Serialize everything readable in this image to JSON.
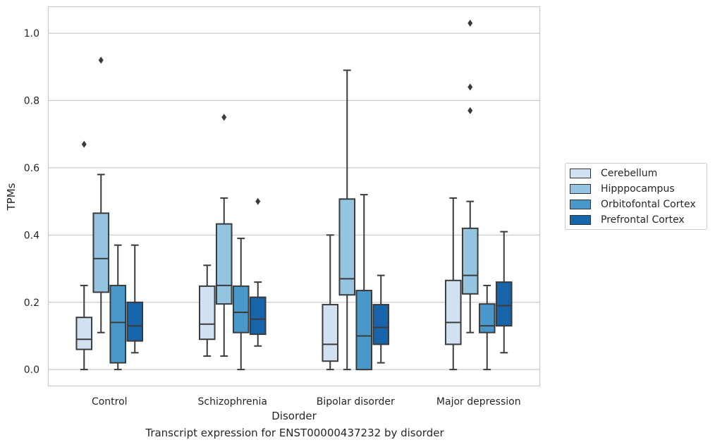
{
  "chart_data": {
    "type": "boxplot",
    "title": "",
    "caption": "Transcript expression for ENST00000437232 by disorder",
    "xlabel": "Disorder",
    "ylabel": "TPMs",
    "ylim": [
      -0.05,
      1.08
    ],
    "yticks": [
      "0.0",
      "0.2",
      "0.4",
      "0.6",
      "0.8",
      "1.0"
    ],
    "categories": [
      "Control",
      "Schizophrenia",
      "Bipolar disorder",
      "Major depression"
    ],
    "grid": "horizontal",
    "legend_position": "right",
    "series": [
      {
        "name": "Cerebellum",
        "color": "#d0e1f2",
        "boxes": [
          {
            "min": 0.0,
            "q1": 0.06,
            "median": 0.09,
            "q3": 0.155,
            "max": 0.25,
            "outliers": [
              0.67
            ]
          },
          {
            "min": 0.04,
            "q1": 0.09,
            "median": 0.135,
            "q3": 0.248,
            "max": 0.31,
            "outliers": []
          },
          {
            "min": 0.0,
            "q1": 0.025,
            "median": 0.075,
            "q3": 0.193,
            "max": 0.4,
            "outliers": []
          },
          {
            "min": 0.0,
            "q1": 0.075,
            "median": 0.14,
            "q3": 0.265,
            "max": 0.51,
            "outliers": []
          }
        ]
      },
      {
        "name": "Hipppocampus",
        "color": "#94c4df",
        "boxes": [
          {
            "min": 0.11,
            "q1": 0.23,
            "median": 0.33,
            "q3": 0.465,
            "max": 0.58,
            "outliers": [
              0.92
            ]
          },
          {
            "min": 0.04,
            "q1": 0.195,
            "median": 0.25,
            "q3": 0.433,
            "max": 0.51,
            "outliers": [
              0.75
            ]
          },
          {
            "min": 0.0,
            "q1": 0.222,
            "median": 0.27,
            "q3": 0.507,
            "max": 0.89,
            "outliers": []
          },
          {
            "min": 0.11,
            "q1": 0.225,
            "median": 0.28,
            "q3": 0.42,
            "max": 0.5,
            "outliers": [
              0.77,
              0.84,
              1.03
            ]
          }
        ]
      },
      {
        "name": "Orbitofontal Cortex",
        "color": "#4a98c9",
        "boxes": [
          {
            "min": 0.0,
            "q1": 0.02,
            "median": 0.14,
            "q3": 0.25,
            "max": 0.37,
            "outliers": []
          },
          {
            "min": 0.0,
            "q1": 0.11,
            "median": 0.17,
            "q3": 0.248,
            "max": 0.39,
            "outliers": []
          },
          {
            "min": 0.0,
            "q1": 0.0,
            "median": 0.1,
            "q3": 0.235,
            "max": 0.52,
            "outliers": []
          },
          {
            "min": 0.0,
            "q1": 0.11,
            "median": 0.13,
            "q3": 0.195,
            "max": 0.25,
            "outliers": []
          }
        ]
      },
      {
        "name": "Prefrontal Cortex",
        "color": "#1764ab",
        "boxes": [
          {
            "min": 0.05,
            "q1": 0.085,
            "median": 0.13,
            "q3": 0.2,
            "max": 0.37,
            "outliers": []
          },
          {
            "min": 0.07,
            "q1": 0.105,
            "median": 0.15,
            "q3": 0.215,
            "max": 0.26,
            "outliers": [
              0.5
            ]
          },
          {
            "min": 0.02,
            "q1": 0.075,
            "median": 0.125,
            "q3": 0.193,
            "max": 0.28,
            "outliers": []
          },
          {
            "min": 0.05,
            "q1": 0.13,
            "median": 0.19,
            "q3": 0.26,
            "max": 0.41,
            "outliers": []
          }
        ]
      }
    ]
  }
}
